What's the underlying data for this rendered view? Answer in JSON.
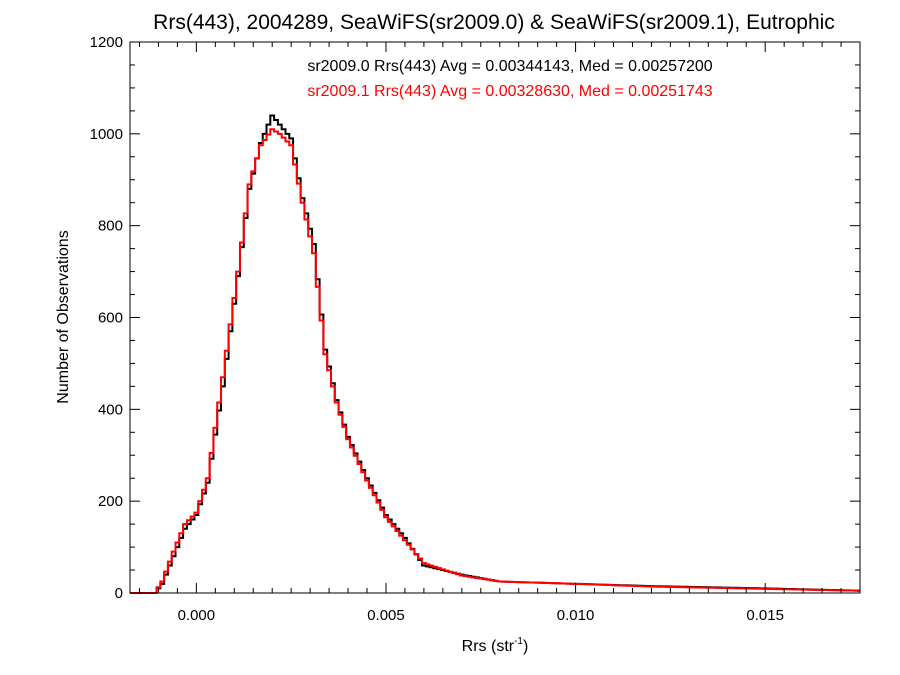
{
  "chart_data": {
    "type": "histogram",
    "title": "Rrs(443), 2004289, SeaWiFS(sr2009.0) & SeaWiFS(sr2009.1), Eutrophic",
    "xlabel": {
      "prefix": "Rrs (str",
      "sup": "-1",
      "suffix": ")"
    },
    "ylabel": "Number of Observations",
    "xlim": [
      -0.00175,
      0.0175
    ],
    "ylim": [
      0,
      1200
    ],
    "xticks": [
      0.0,
      0.005,
      0.01,
      0.015
    ],
    "xtick_labels": [
      "0.000",
      "0.005",
      "0.010",
      "0.015"
    ],
    "yticks": [
      0,
      200,
      400,
      600,
      800,
      1000,
      1200
    ],
    "ytick_labels": [
      "0",
      "200",
      "400",
      "600",
      "800",
      "1000",
      "1200"
    ],
    "x_minor_step": 0.0005,
    "y_minor_step": 50,
    "grid": false,
    "bin_width": 0.0001,
    "x_profile": [
      -0.0018,
      -0.0011,
      -0.0009,
      -0.0006,
      -0.0003,
      0.0,
      0.0003,
      0.0007,
      0.0011,
      0.0014,
      0.0017,
      0.002,
      0.0022,
      0.0025,
      0.0028,
      0.0031,
      0.0034,
      0.0037,
      0.004,
      0.0045,
      0.005,
      0.0055,
      0.006,
      0.007,
      0.008,
      0.01,
      0.012,
      0.015,
      0.0175
    ],
    "series": [
      {
        "name": "sr2009.0",
        "color": "#000000",
        "counts": [
          0,
          0,
          20,
          80,
          140,
          170,
          240,
          450,
          690,
          880,
          980,
          1040,
          1020,
          990,
          860,
          760,
          530,
          420,
          340,
          250,
          170,
          120,
          60,
          40,
          25,
          20,
          15,
          10,
          5
        ]
      },
      {
        "name": "sr2009.1",
        "color": "#ff0000",
        "counts": [
          0,
          0,
          25,
          90,
          150,
          175,
          250,
          470,
          700,
          890,
          975,
          1010,
          1000,
          975,
          850,
          740,
          520,
          415,
          335,
          245,
          165,
          115,
          65,
          38,
          25,
          20,
          14,
          9,
          5
        ]
      }
    ],
    "annotations": [
      {
        "text": "sr2009.0 Rrs(443) Avg = 0.00344143, Med = 0.00257200",
        "color": "#000000"
      },
      {
        "text": "sr2009.1 Rrs(443) Avg = 0.00328630, Med = 0.00251743",
        "color": "#ff0000"
      }
    ]
  }
}
